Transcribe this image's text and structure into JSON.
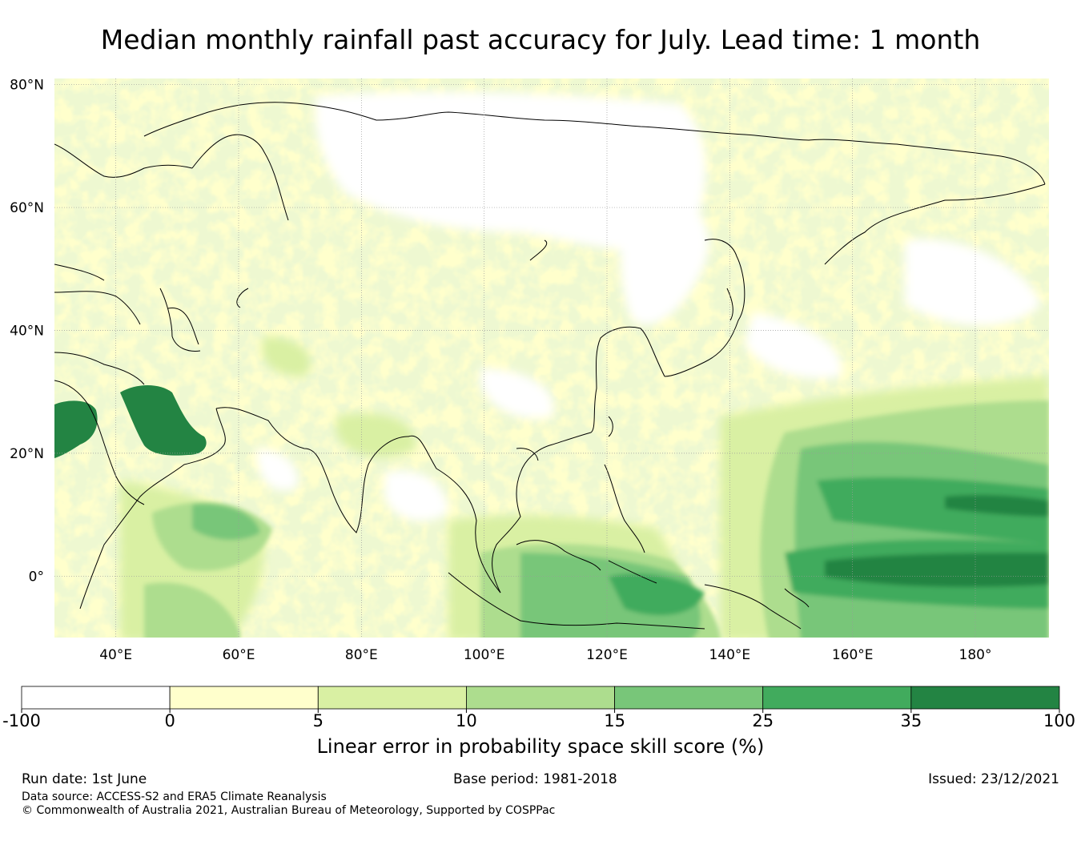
{
  "title": "Median monthly rainfall past accuracy for July. Lead time: 1 month",
  "map": {
    "lon_range": [
      30,
      192
    ],
    "lat_range": [
      -10,
      81
    ],
    "lon_ticks": [
      {
        "value": 40,
        "label": "40°E"
      },
      {
        "value": 60,
        "label": "60°E"
      },
      {
        "value": 80,
        "label": "80°E"
      },
      {
        "value": 100,
        "label": "100°E"
      },
      {
        "value": 120,
        "label": "120°E"
      },
      {
        "value": 140,
        "label": "140°E"
      },
      {
        "value": 160,
        "label": "160°E"
      },
      {
        "value": 180,
        "label": "180°"
      }
    ],
    "lat_ticks": [
      {
        "value": 80,
        "label": "80°N"
      },
      {
        "value": 60,
        "label": "60°N"
      },
      {
        "value": 40,
        "label": "40°N"
      },
      {
        "value": 20,
        "label": "20°N"
      },
      {
        "value": 0,
        "label": "0°"
      }
    ],
    "grid": true
  },
  "colorbar": {
    "boundaries": [
      "-100",
      "0",
      "5",
      "10",
      "15",
      "25",
      "35",
      "100"
    ],
    "colors": [
      "#ffffff",
      "#ffffcc",
      "#d9f0a3",
      "#addd8e",
      "#78c679",
      "#41ab5d",
      "#238443"
    ],
    "label": "Linear error in probability space skill score (%)"
  },
  "footer": {
    "run_date": "Run date: 1st June",
    "base_period": "Base period: 1981-2018",
    "issued": "Issued: 23/12/2021",
    "data_source": "Data source: ACCESS-S2 and ERA5 Climate Reanalysis",
    "copyright": "© Commonwealth of Australia 2021, Australian Bureau of Meteorology, Supported by COSPPac"
  }
}
